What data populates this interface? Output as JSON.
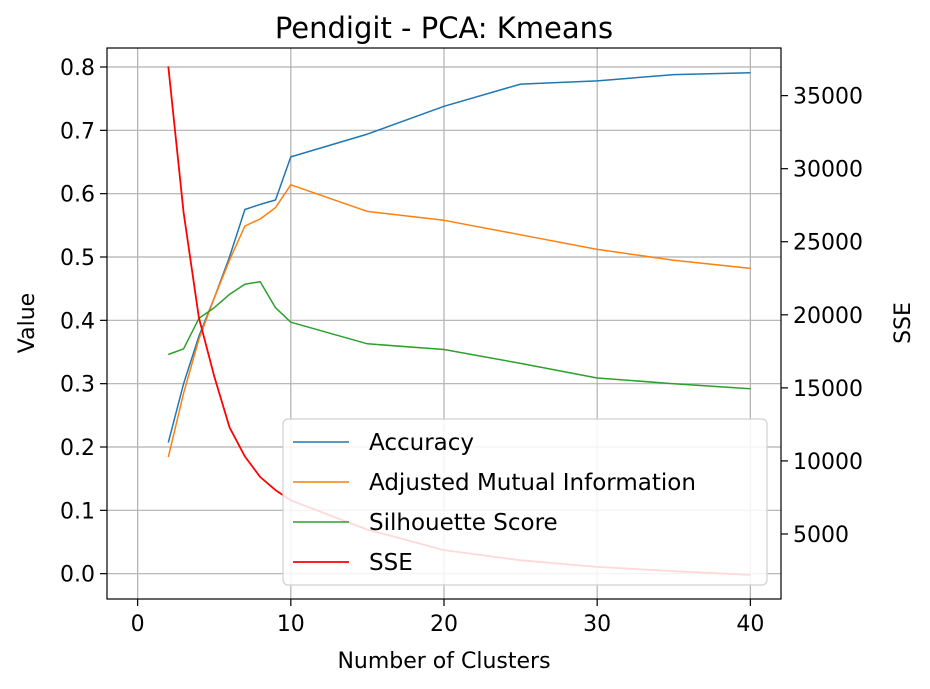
{
  "chart_data": {
    "type": "line",
    "title": "Pendigit - PCA: Kmeans",
    "xlabel": "Number of Clusters",
    "ylabel": "Value",
    "y2label": "SSE",
    "xlim": [
      -2,
      42
    ],
    "ylim": [
      -0.04,
      0.83
    ],
    "y2lim": [
      550,
      38260
    ],
    "xticks": [
      0,
      10,
      20,
      30,
      40
    ],
    "yticks": [
      0.0,
      0.1,
      0.2,
      0.3,
      0.4,
      0.5,
      0.6,
      0.7,
      0.8
    ],
    "y2ticks": [
      5000,
      10000,
      15000,
      20000,
      25000,
      30000,
      35000
    ],
    "grid": true,
    "legend_position": "lower-right",
    "series": [
      {
        "name": "Accuracy",
        "axis": "left",
        "color": "#1f77b4",
        "x": [
          2,
          3,
          4,
          5,
          6,
          7,
          8,
          9,
          10,
          15,
          20,
          25,
          30,
          35,
          40
        ],
        "values": [
          0.207,
          0.3,
          0.375,
          0.435,
          0.5,
          0.575,
          0.583,
          0.59,
          0.658,
          0.694,
          0.738,
          0.773,
          0.778,
          0.788,
          0.791
        ]
      },
      {
        "name": "Adjusted Mutual Information",
        "axis": "left",
        "color": "#ff7f0e",
        "x": [
          2,
          3,
          4,
          5,
          6,
          7,
          8,
          9,
          10,
          15,
          20,
          25,
          30,
          35,
          40
        ],
        "values": [
          0.184,
          0.285,
          0.37,
          0.435,
          0.495,
          0.549,
          0.56,
          0.578,
          0.614,
          0.572,
          0.558,
          0.535,
          0.512,
          0.495,
          0.482
        ]
      },
      {
        "name": "Silhouette Score",
        "axis": "left",
        "color": "#2ca02c",
        "x": [
          2,
          3,
          4,
          5,
          6,
          7,
          8,
          9,
          10,
          15,
          20,
          25,
          30,
          35,
          40
        ],
        "values": [
          0.346,
          0.355,
          0.403,
          0.42,
          0.441,
          0.457,
          0.461,
          0.42,
          0.397,
          0.363,
          0.354,
          0.332,
          0.309,
          0.3,
          0.292
        ]
      },
      {
        "name": "SSE",
        "axis": "right",
        "color": "#ff0000",
        "x": [
          2,
          3,
          4,
          5,
          6,
          7,
          8,
          9,
          10,
          15,
          20,
          25,
          30,
          35,
          40
        ],
        "values": [
          37000,
          27000,
          19800,
          15800,
          12300,
          10300,
          8900,
          8000,
          7300,
          5300,
          3900,
          3200,
          2750,
          2450,
          2200
        ]
      }
    ]
  }
}
